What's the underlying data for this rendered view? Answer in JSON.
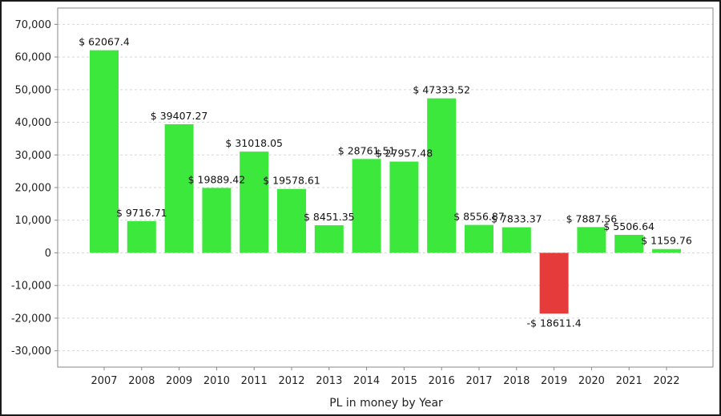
{
  "chart_data": {
    "type": "bar",
    "title": "",
    "xlabel": "PL in money by Year",
    "ylabel": "",
    "ylim": [
      -35000,
      75000
    ],
    "yticks": [
      -30000,
      -20000,
      -10000,
      0,
      10000,
      20000,
      30000,
      40000,
      50000,
      60000,
      70000
    ],
    "ytick_labels": [
      "-30,000",
      "-20,000",
      "-10,000",
      "0",
      "10,000",
      "20,000",
      "30,000",
      "40,000",
      "50,000",
      "60,000",
      "70,000"
    ],
    "grid": true,
    "legend": "none",
    "categories": [
      "2007",
      "2008",
      "2009",
      "2010",
      "2011",
      "2012",
      "2013",
      "2014",
      "2015",
      "2016",
      "2017",
      "2018",
      "2019",
      "2020",
      "2021",
      "2022"
    ],
    "values": [
      62067.4,
      9716.71,
      39407.27,
      19889.42,
      31018.05,
      19578.61,
      8451.35,
      28761.51,
      27957.48,
      47333.52,
      8556.87,
      7833.37,
      -18611.4,
      7887.56,
      5506.64,
      1159.76
    ],
    "data_labels": [
      "$ 62067.4",
      "$ 9716.71",
      "$ 39407.27",
      "$ 19889.42",
      "$ 31018.05",
      "$ 19578.61",
      "$ 8451.35",
      "$ 28761.51",
      "$ 27957.48",
      "$ 47333.52",
      "$ 8556.87",
      "$ 7833.37",
      "-$ 18611.4",
      "$ 7887.56",
      "$ 5506.64",
      "$ 1159.76"
    ],
    "colors": {
      "positive": "#3de83d",
      "negative": "#e63b3b",
      "grid": "#d8d8d8",
      "axis": "#888888"
    }
  }
}
